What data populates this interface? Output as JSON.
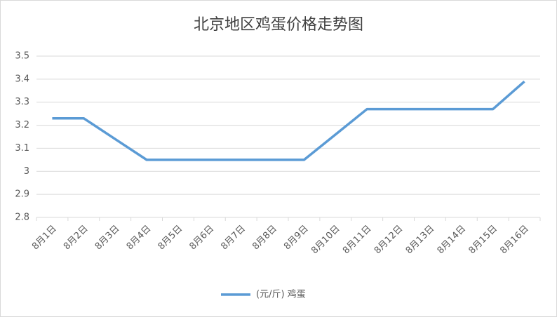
{
  "chart_data": {
    "type": "line",
    "title": "北京地区鸡蛋价格走势图",
    "categories": [
      "8月1日",
      "8月2日",
      "8月3日",
      "8月4日",
      "8月5日",
      "8月6日",
      "8月7日",
      "8月8日",
      "8月9日",
      "8月10日",
      "8月11日",
      "8月12日",
      "8月13日",
      "8月14日",
      "8月15日",
      "8月16日"
    ],
    "series": [
      {
        "name": "(元/斤) 鸡蛋",
        "color": "#5b9bd5",
        "values": [
          3.23,
          3.23,
          3.14,
          3.05,
          3.05,
          3.05,
          3.05,
          3.05,
          3.05,
          3.16,
          3.27,
          3.27,
          3.27,
          3.27,
          3.27,
          3.39
        ]
      }
    ],
    "ylim": [
      2.8,
      3.5
    ],
    "yticks": [
      2.8,
      2.9,
      3,
      3.1,
      3.2,
      3.3,
      3.4,
      3.5
    ],
    "grid": true,
    "legend": "bottom"
  }
}
